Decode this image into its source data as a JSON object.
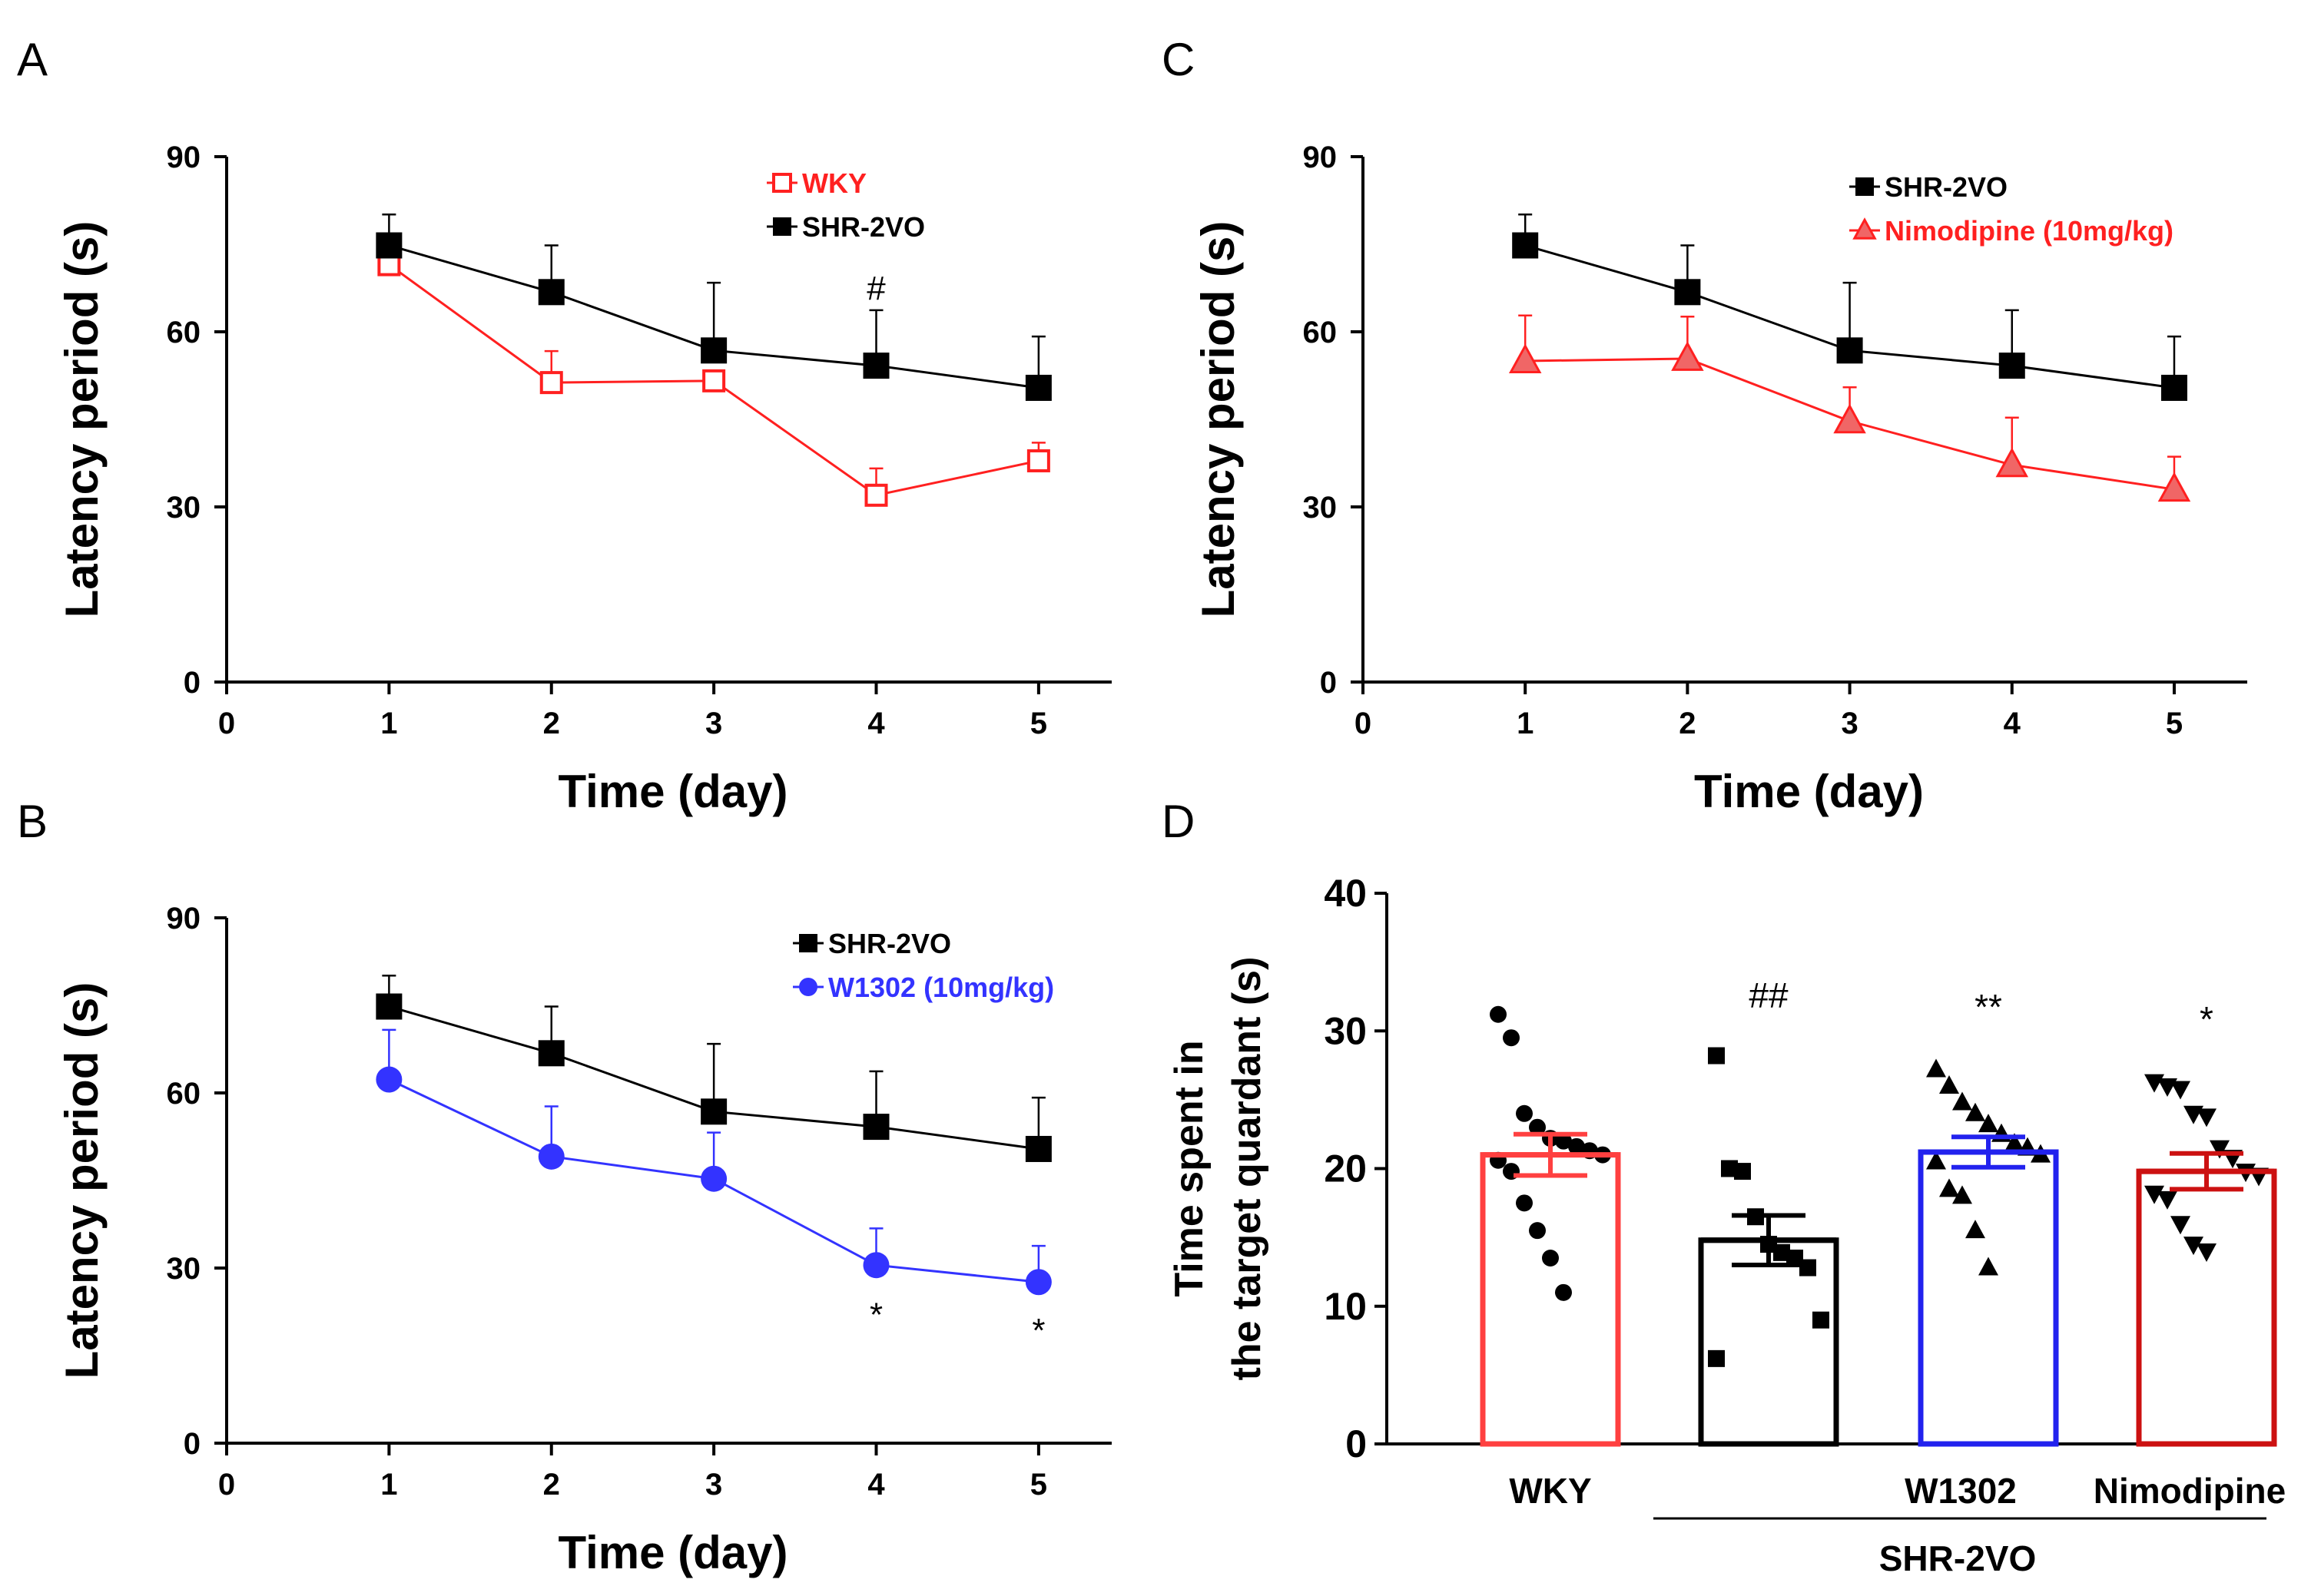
{
  "chart_data": [
    {
      "id": "A",
      "type": "line",
      "panel_label": "A",
      "xlabel": "Time (day)",
      "ylabel": "Latency period (s)",
      "xlim": [
        0,
        5.45
      ],
      "ylim": [
        0,
        90
      ],
      "x_ticks": [
        0,
        1,
        2,
        3,
        4,
        5
      ],
      "y_ticks": [
        0,
        30,
        60,
        90
      ],
      "x": [
        1,
        2,
        3,
        4,
        5
      ],
      "legend_position": "top-center",
      "series": [
        {
          "name": "WKY",
          "color": "#ff2020",
          "marker": "square-open",
          "values": [
            71.5,
            51.3,
            51.6,
            32.0,
            37.9
          ],
          "err": [
            0.0,
            5.4,
            0.0,
            4.6,
            3.1
          ]
        },
        {
          "name": "SHR-2VO",
          "color": "#000000",
          "marker": "square",
          "values": [
            74.8,
            66.8,
            56.8,
            54.2,
            50.4
          ],
          "err": [
            5.3,
            8.0,
            11.6,
            9.5,
            8.8
          ]
        }
      ],
      "annotations": [
        {
          "text": "#",
          "x": 4,
          "y": 67.6
        }
      ]
    },
    {
      "id": "B",
      "type": "line",
      "panel_label": "B",
      "xlabel": "Time (day)",
      "ylabel": "Latency period (s)",
      "xlim": [
        0,
        5.45
      ],
      "ylim": [
        0,
        90
      ],
      "x_ticks": [
        0,
        1,
        2,
        3,
        4,
        5
      ],
      "y_ticks": [
        0,
        30,
        60,
        90
      ],
      "x": [
        1,
        2,
        3,
        4,
        5
      ],
      "legend_position": "top-right",
      "series": [
        {
          "name": "SHR-2VO",
          "color": "#000000",
          "marker": "square",
          "values": [
            74.8,
            66.8,
            56.8,
            54.2,
            50.4
          ],
          "err": [
            5.3,
            8.0,
            11.6,
            9.5,
            8.8
          ]
        },
        {
          "name": "W1302 (10mg/kg)",
          "color": "#3333ff",
          "marker": "circle",
          "values": [
            62.3,
            49.1,
            45.3,
            30.5,
            27.6
          ],
          "err": [
            8.5,
            8.6,
            7.9,
            6.3,
            6.2
          ]
        }
      ],
      "annotations": [
        {
          "text": "*",
          "x": 4,
          "y": 22.2
        },
        {
          "text": "*",
          "x": 5,
          "y": 19.5
        }
      ]
    },
    {
      "id": "C",
      "type": "line",
      "panel_label": "C",
      "xlabel": "Time (day)",
      "ylabel": "Latency period (s)",
      "xlim": [
        0,
        5.45
      ],
      "ylim": [
        0,
        90
      ],
      "x_ticks": [
        0,
        1,
        2,
        3,
        4,
        5
      ],
      "y_ticks": [
        0,
        30,
        60,
        90
      ],
      "x": [
        1,
        2,
        3,
        4,
        5
      ],
      "legend_position": "top-right",
      "series": [
        {
          "name": "SHR-2VO",
          "color": "#000000",
          "marker": "square",
          "values": [
            74.8,
            66.8,
            56.8,
            54.2,
            50.4
          ],
          "err": [
            5.3,
            8.0,
            11.6,
            9.5,
            8.8
          ]
        },
        {
          "name": "Nimodipine (10mg/kg)",
          "color": "#ff2020",
          "marker": "triangle",
          "values": [
            55.0,
            55.4,
            44.7,
            37.2,
            33.0
          ],
          "err": [
            7.8,
            7.2,
            5.8,
            8.1,
            5.6
          ]
        }
      ],
      "annotations": []
    },
    {
      "id": "D",
      "type": "bar",
      "panel_label": "D",
      "ylabel_lines": [
        "Time spent in",
        "the target quardant (s)"
      ],
      "ylim": [
        0,
        40
      ],
      "y_ticks": [
        0,
        10,
        20,
        30,
        40
      ],
      "categories": [
        "WKY",
        "",
        "W1302",
        "Nimodipine"
      ],
      "group_label": "SHR-2VO",
      "bars": [
        {
          "name": "WKY",
          "color": "#ff4040",
          "value": 21.0,
          "err": 1.5,
          "marker": "circle",
          "sig": "",
          "points": [
            31.2,
            29.5,
            24.0,
            23.0,
            22.2,
            22.0,
            21.6,
            21.3,
            21.0,
            20.6,
            19.8,
            17.5,
            15.5,
            13.5,
            11.0
          ]
        },
        {
          "name": "",
          "color": "#000000",
          "value": 14.8,
          "err": 1.8,
          "marker": "square",
          "sig": "##",
          "points": [
            28.2,
            20.0,
            19.8,
            16.5,
            14.5,
            13.9,
            13.5,
            12.8,
            9.0,
            6.2
          ]
        },
        {
          "name": "W1302",
          "color": "#2222ee",
          "value": 21.2,
          "err": 1.1,
          "marker": "triangle",
          "sig": "**",
          "points": [
            27.2,
            26.0,
            24.8,
            24.0,
            23.2,
            22.5,
            21.8,
            21.5,
            21.0,
            20.5,
            18.5,
            18.0,
            15.5,
            12.8
          ]
        },
        {
          "name": "Nimodipine",
          "color": "#cc1111",
          "value": 19.8,
          "err": 1.3,
          "marker": "triangle-down",
          "sig": "*",
          "points": [
            26.3,
            26.0,
            25.8,
            24.0,
            23.8,
            21.5,
            20.8,
            19.8,
            19.5,
            18.2,
            17.8,
            16.0,
            14.5,
            14.0
          ]
        }
      ]
    }
  ]
}
